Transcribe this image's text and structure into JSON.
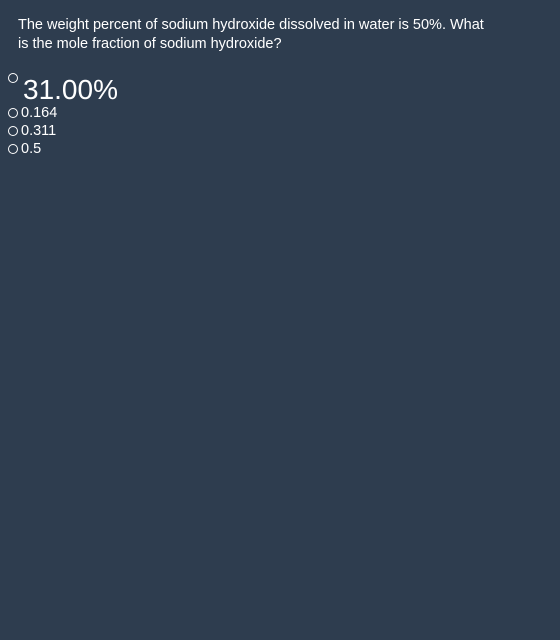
{
  "question": {
    "text": "The weight percent of sodium hydroxide dissolved in water is 50%. What is the mole fraction of sodium hydroxide?"
  },
  "options": [
    {
      "label": "31.00%"
    },
    {
      "label": "0.164"
    },
    {
      "label": "0.311"
    },
    {
      "label": "0.5"
    }
  ],
  "colors": {
    "background": "#2e3d4f",
    "text": "#ffffff"
  }
}
